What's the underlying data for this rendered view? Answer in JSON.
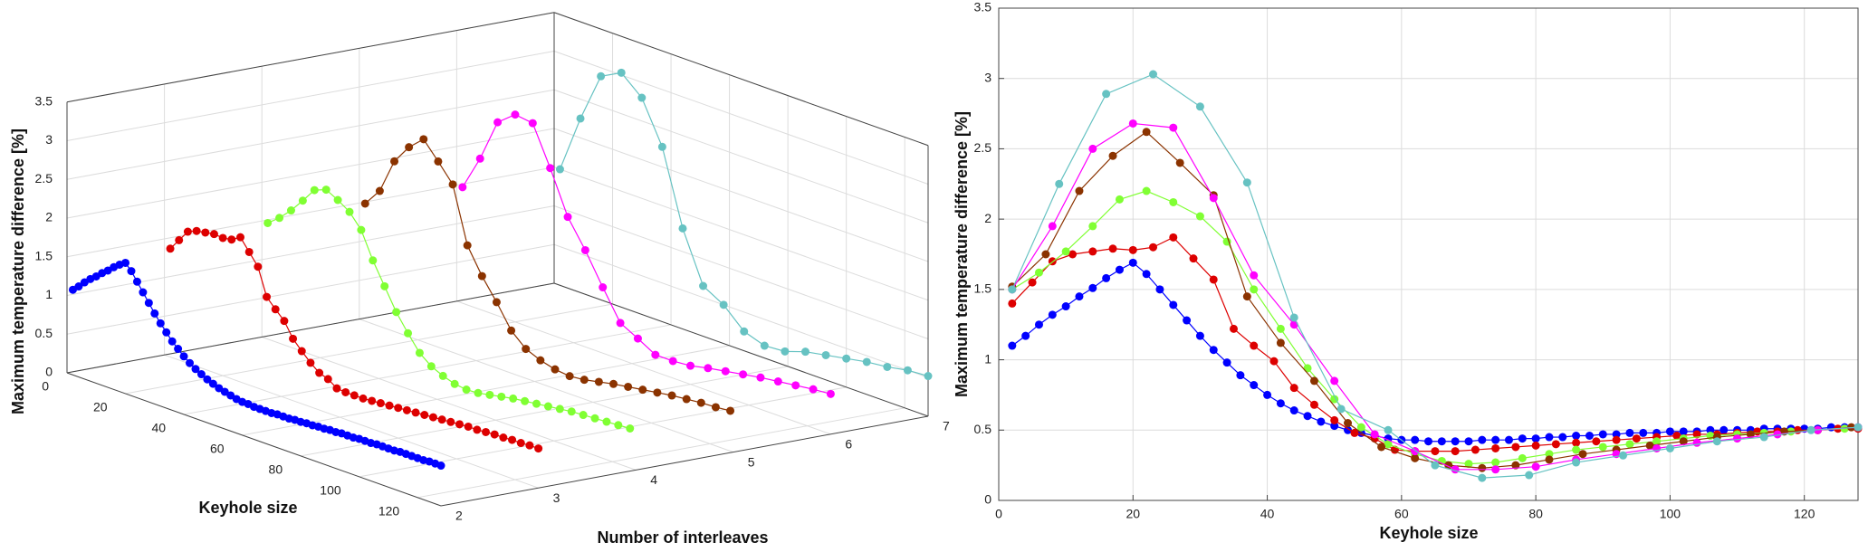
{
  "chart_data": [
    {
      "type": "line3d",
      "xlabel": "Keyhole size",
      "ylabel": "Number of interleaves",
      "zlabel": "Maximum temperature difference [%]",
      "xlim": [
        0,
        128
      ],
      "xticks": [
        0,
        20,
        40,
        60,
        80,
        100,
        120
      ],
      "ylim": [
        2,
        7
      ],
      "yticks": [
        2,
        3,
        4,
        5,
        6,
        7
      ],
      "zlim": [
        0,
        3.5
      ],
      "zticks": [
        0,
        0.5,
        1,
        1.5,
        2,
        2.5,
        3,
        3.5
      ],
      "grid": true,
      "series": [
        {
          "color": "#0000ff",
          "interleaves": 2,
          "x": [
            2,
            4,
            6,
            8,
            10,
            12,
            14,
            16,
            18,
            20,
            22,
            24,
            26,
            28,
            30,
            32,
            34,
            36,
            38,
            40,
            42,
            44,
            46,
            48,
            50,
            52,
            54,
            56,
            58,
            60,
            62,
            64,
            66,
            68,
            70,
            72,
            74,
            76,
            78,
            80,
            82,
            84,
            86,
            88,
            90,
            92,
            94,
            96,
            98,
            100,
            102,
            104,
            106,
            108,
            110,
            112,
            114,
            116,
            118,
            120,
            122,
            124,
            126,
            128
          ],
          "values": [
            1.1,
            1.17,
            1.25,
            1.32,
            1.38,
            1.45,
            1.51,
            1.58,
            1.64,
            1.69,
            1.61,
            1.5,
            1.39,
            1.28,
            1.17,
            1.07,
            0.98,
            0.89,
            0.82,
            0.75,
            0.69,
            0.64,
            0.6,
            0.56,
            0.53,
            0.5,
            0.48,
            0.46,
            0.44,
            0.43,
            0.43,
            0.42,
            0.42,
            0.42,
            0.42,
            0.43,
            0.43,
            0.43,
            0.44,
            0.44,
            0.45,
            0.45,
            0.46,
            0.46,
            0.47,
            0.47,
            0.48,
            0.48,
            0.48,
            0.49,
            0.49,
            0.49,
            0.5,
            0.5,
            0.5,
            0.5,
            0.51,
            0.51,
            0.51,
            0.51,
            0.51,
            0.52,
            0.52,
            0.52
          ]
        },
        {
          "color": "#dd0000",
          "interleaves": 3,
          "x": [
            2,
            5,
            8,
            11,
            14,
            17,
            20,
            23,
            26,
            29,
            32,
            35,
            38,
            41,
            44,
            47,
            50,
            53,
            56,
            59,
            62,
            65,
            68,
            71,
            74,
            77,
            80,
            83,
            86,
            89,
            92,
            95,
            98,
            101,
            104,
            107,
            110,
            113,
            116,
            119,
            122,
            125,
            128
          ],
          "values": [
            1.4,
            1.55,
            1.7,
            1.75,
            1.77,
            1.79,
            1.78,
            1.8,
            1.87,
            1.72,
            1.57,
            1.22,
            1.1,
            0.99,
            0.8,
            0.68,
            0.57,
            0.48,
            0.44,
            0.36,
            0.35,
            0.35,
            0.35,
            0.36,
            0.37,
            0.38,
            0.39,
            0.4,
            0.41,
            0.42,
            0.43,
            0.44,
            0.45,
            0.46,
            0.47,
            0.47,
            0.48,
            0.49,
            0.49,
            0.5,
            0.5,
            0.51,
            0.51
          ]
        },
        {
          "color": "#80ff33",
          "interleaves": 4,
          "x": [
            2,
            6,
            10,
            14,
            18,
            22,
            26,
            30,
            34,
            38,
            42,
            46,
            50,
            54,
            58,
            62,
            66,
            70,
            74,
            78,
            82,
            86,
            90,
            94,
            98,
            102,
            106,
            110,
            114,
            118,
            122,
            126
          ],
          "values": [
            1.5,
            1.62,
            1.77,
            1.95,
            2.14,
            2.2,
            2.12,
            2.02,
            1.84,
            1.5,
            1.22,
            0.94,
            0.72,
            0.52,
            0.4,
            0.33,
            0.28,
            0.26,
            0.27,
            0.3,
            0.33,
            0.36,
            0.38,
            0.4,
            0.42,
            0.44,
            0.46,
            0.47,
            0.48,
            0.49,
            0.5,
            0.51
          ]
        },
        {
          "color": "#8b3300",
          "interleaves": 5,
          "x": [
            2,
            7,
            12,
            17,
            22,
            27,
            32,
            37,
            42,
            47,
            52,
            57,
            62,
            67,
            72,
            77,
            82,
            87,
            92,
            97,
            102,
            107,
            112,
            117,
            122,
            127
          ],
          "values": [
            1.52,
            1.75,
            2.2,
            2.45,
            2.62,
            2.4,
            2.17,
            1.45,
            1.12,
            0.85,
            0.55,
            0.38,
            0.3,
            0.25,
            0.23,
            0.25,
            0.29,
            0.33,
            0.36,
            0.39,
            0.42,
            0.45,
            0.47,
            0.49,
            0.5,
            0.52
          ]
        },
        {
          "color": "#ff00ff",
          "interleaves": 6,
          "x": [
            2,
            8,
            14,
            20,
            26,
            32,
            38,
            44,
            50,
            56,
            62,
            68,
            74,
            80,
            86,
            92,
            98,
            104,
            110,
            116,
            122,
            128
          ],
          "values": [
            1.5,
            1.95,
            2.5,
            2.68,
            2.65,
            2.15,
            1.6,
            1.25,
            0.85,
            0.47,
            0.35,
            0.22,
            0.22,
            0.24,
            0.29,
            0.33,
            0.37,
            0.41,
            0.44,
            0.47,
            0.5,
            0.52
          ]
        },
        {
          "color": "#66c2c2",
          "interleaves": 7,
          "x": [
            2,
            9,
            16,
            23,
            30,
            37,
            44,
            51,
            58,
            65,
            72,
            79,
            86,
            93,
            100,
            107,
            114,
            121,
            128
          ],
          "values": [
            1.5,
            2.25,
            2.89,
            3.03,
            2.8,
            2.26,
            1.3,
            0.65,
            0.5,
            0.25,
            0.16,
            0.18,
            0.27,
            0.32,
            0.37,
            0.42,
            0.45,
            0.5,
            0.52
          ]
        }
      ]
    },
    {
      "type": "line",
      "xlabel": "Keyhole size",
      "ylabel": "Maximum temperature difference [%]",
      "xlim": [
        0,
        128
      ],
      "xticks": [
        0,
        20,
        40,
        60,
        80,
        100,
        120
      ],
      "ylim": [
        0,
        3.5
      ],
      "yticks": [
        0,
        0.5,
        1,
        1.5,
        2,
        2.5,
        3,
        3.5
      ],
      "grid": true,
      "series": [
        {
          "color": "#0000ff",
          "x": [
            2,
            4,
            6,
            8,
            10,
            12,
            14,
            16,
            18,
            20,
            22,
            24,
            26,
            28,
            30,
            32,
            34,
            36,
            38,
            40,
            42,
            44,
            46,
            48,
            50,
            52,
            54,
            56,
            58,
            60,
            62,
            64,
            66,
            68,
            70,
            72,
            74,
            76,
            78,
            80,
            82,
            84,
            86,
            88,
            90,
            92,
            94,
            96,
            98,
            100,
            102,
            104,
            106,
            108,
            110,
            112,
            114,
            116,
            118,
            120,
            122,
            124,
            126,
            128
          ],
          "values": [
            1.1,
            1.17,
            1.25,
            1.32,
            1.38,
            1.45,
            1.51,
            1.58,
            1.64,
            1.69,
            1.61,
            1.5,
            1.39,
            1.28,
            1.17,
            1.07,
            0.98,
            0.89,
            0.82,
            0.75,
            0.69,
            0.64,
            0.6,
            0.56,
            0.53,
            0.5,
            0.48,
            0.46,
            0.44,
            0.43,
            0.43,
            0.42,
            0.42,
            0.42,
            0.42,
            0.43,
            0.43,
            0.43,
            0.44,
            0.44,
            0.45,
            0.45,
            0.46,
            0.46,
            0.47,
            0.47,
            0.48,
            0.48,
            0.48,
            0.49,
            0.49,
            0.49,
            0.5,
            0.5,
            0.5,
            0.5,
            0.51,
            0.51,
            0.51,
            0.51,
            0.51,
            0.52,
            0.52,
            0.52
          ]
        },
        {
          "color": "#dd0000",
          "x": [
            2,
            5,
            8,
            11,
            14,
            17,
            20,
            23,
            26,
            29,
            32,
            35,
            38,
            41,
            44,
            47,
            50,
            53,
            56,
            59,
            62,
            65,
            68,
            71,
            74,
            77,
            80,
            83,
            86,
            89,
            92,
            95,
            98,
            101,
            104,
            107,
            110,
            113,
            116,
            119,
            122,
            125,
            128
          ],
          "values": [
            1.4,
            1.55,
            1.7,
            1.75,
            1.77,
            1.79,
            1.78,
            1.8,
            1.87,
            1.72,
            1.57,
            1.22,
            1.1,
            0.99,
            0.8,
            0.68,
            0.57,
            0.48,
            0.44,
            0.36,
            0.35,
            0.35,
            0.35,
            0.36,
            0.37,
            0.38,
            0.39,
            0.4,
            0.41,
            0.42,
            0.43,
            0.44,
            0.45,
            0.46,
            0.47,
            0.47,
            0.48,
            0.49,
            0.49,
            0.5,
            0.5,
            0.51,
            0.51
          ]
        },
        {
          "color": "#80ff33",
          "x": [
            2,
            6,
            10,
            14,
            18,
            22,
            26,
            30,
            34,
            38,
            42,
            46,
            50,
            54,
            58,
            62,
            66,
            70,
            74,
            78,
            82,
            86,
            90,
            94,
            98,
            102,
            106,
            110,
            114,
            118,
            122,
            126
          ],
          "values": [
            1.5,
            1.62,
            1.77,
            1.95,
            2.14,
            2.2,
            2.12,
            2.02,
            1.84,
            1.5,
            1.22,
            0.94,
            0.72,
            0.52,
            0.4,
            0.33,
            0.28,
            0.26,
            0.27,
            0.3,
            0.33,
            0.36,
            0.38,
            0.4,
            0.42,
            0.44,
            0.46,
            0.47,
            0.48,
            0.49,
            0.5,
            0.51
          ]
        },
        {
          "color": "#8b3300",
          "x": [
            2,
            7,
            12,
            17,
            22,
            27,
            32,
            37,
            42,
            47,
            52,
            57,
            62,
            67,
            72,
            77,
            82,
            87,
            92,
            97,
            102,
            107,
            112,
            117,
            122,
            127
          ],
          "values": [
            1.52,
            1.75,
            2.2,
            2.45,
            2.62,
            2.4,
            2.17,
            1.45,
            1.12,
            0.85,
            0.55,
            0.38,
            0.3,
            0.25,
            0.23,
            0.25,
            0.29,
            0.33,
            0.36,
            0.39,
            0.42,
            0.45,
            0.47,
            0.49,
            0.5,
            0.52
          ]
        },
        {
          "color": "#ff00ff",
          "x": [
            2,
            8,
            14,
            20,
            26,
            32,
            38,
            44,
            50,
            56,
            62,
            68,
            74,
            80,
            86,
            92,
            98,
            104,
            110,
            116,
            122,
            128
          ],
          "values": [
            1.5,
            1.95,
            2.5,
            2.68,
            2.65,
            2.15,
            1.6,
            1.25,
            0.85,
            0.47,
            0.35,
            0.22,
            0.22,
            0.24,
            0.29,
            0.33,
            0.37,
            0.41,
            0.44,
            0.47,
            0.5,
            0.52
          ]
        },
        {
          "color": "#66c2c2",
          "x": [
            2,
            9,
            16,
            23,
            30,
            37,
            44,
            51,
            58,
            65,
            72,
            79,
            86,
            93,
            100,
            107,
            114,
            121,
            128
          ],
          "values": [
            1.5,
            2.25,
            2.89,
            3.03,
            2.8,
            2.26,
            1.3,
            0.65,
            0.5,
            0.25,
            0.16,
            0.18,
            0.27,
            0.32,
            0.37,
            0.42,
            0.45,
            0.5,
            0.52
          ]
        }
      ]
    }
  ]
}
